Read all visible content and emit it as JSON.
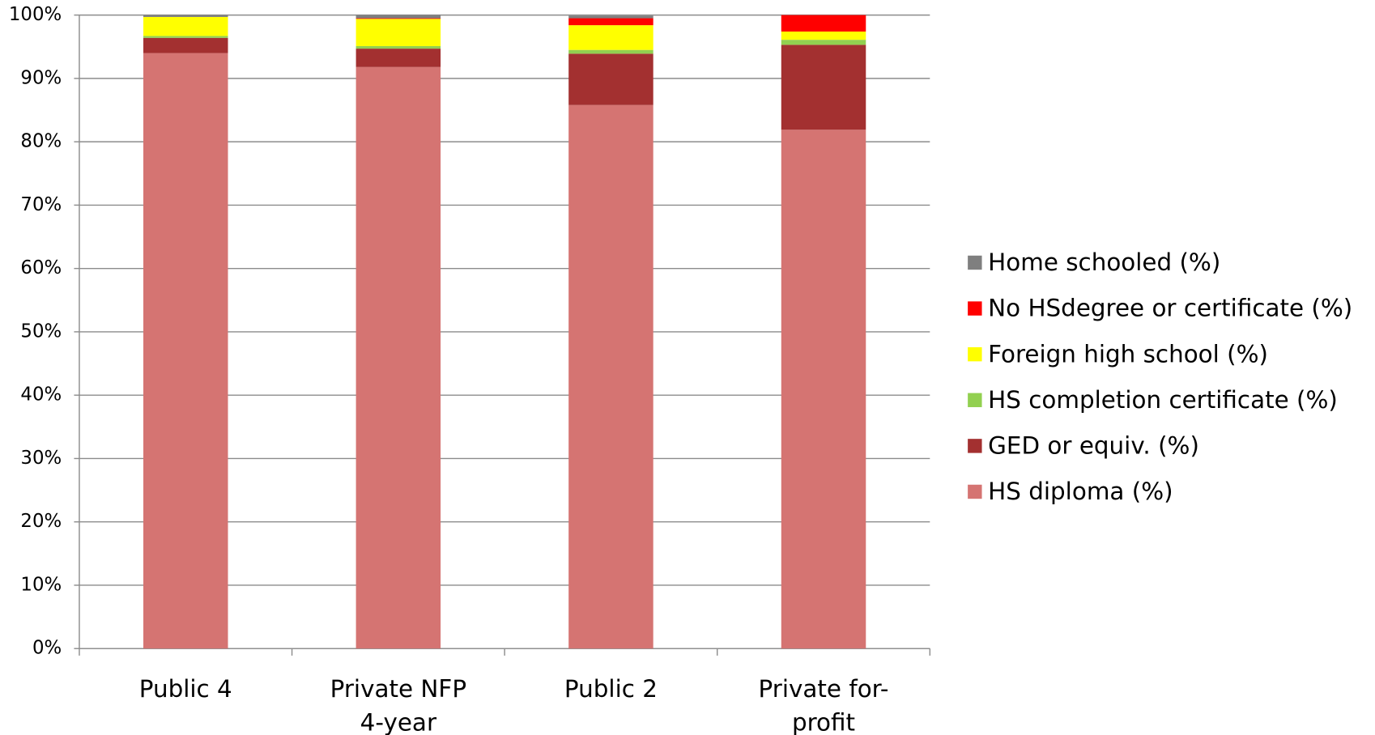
{
  "chart_data": {
    "type": "stacked_bar",
    "categories": [
      "Public 4",
      "Private NFP 4-year",
      "Public 2",
      "Private for-profit"
    ],
    "series": [
      {
        "name": "HS diploma (%)",
        "color": "#d57472",
        "values": [
          94.0,
          91.8,
          85.8,
          81.9
        ]
      },
      {
        "name": "GED or equiv. (%)",
        "color": "#a33030",
        "values": [
          2.4,
          2.9,
          8.1,
          13.4
        ]
      },
      {
        "name": "HS completion certificate (%)",
        "color": "#92d050",
        "values": [
          0.3,
          0.4,
          0.6,
          0.8
        ]
      },
      {
        "name": "Foreign high school (%)",
        "color": "#ffff00",
        "values": [
          3.0,
          4.3,
          3.9,
          1.3
        ]
      },
      {
        "name": "No HSdegree or certificate (%)",
        "color": "#ff0000",
        "values": [
          0.0,
          0.1,
          1.1,
          2.6
        ]
      },
      {
        "name": "Home schooled (%)",
        "color": "#7f7f7f",
        "values": [
          0.3,
          0.5,
          0.4,
          0.0
        ]
      }
    ],
    "ylim": [
      0,
      100
    ],
    "yticks": [
      {
        "value": 0,
        "label": "0%"
      },
      {
        "value": 10,
        "label": "10%"
      },
      {
        "value": 20,
        "label": "20%"
      },
      {
        "value": 30,
        "label": "30%"
      },
      {
        "value": 40,
        "label": "40%"
      },
      {
        "value": 50,
        "label": "50%"
      },
      {
        "value": 60,
        "label": "60%"
      },
      {
        "value": 70,
        "label": "70%"
      },
      {
        "value": 80,
        "label": "80%"
      },
      {
        "value": 90,
        "label": "90%"
      },
      {
        "value": 100,
        "label": "100%"
      }
    ],
    "grid": true,
    "legend": "right"
  }
}
